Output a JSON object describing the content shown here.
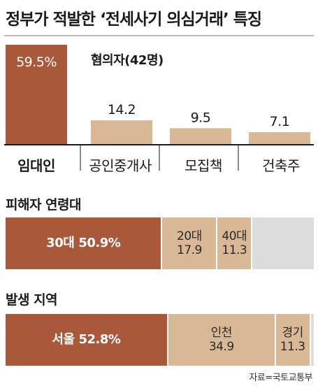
{
  "title": "정부가 적발한 ‘전세사기 의심거래’ 특징",
  "chart_data": [
    {
      "type": "bar",
      "subtitle": "혐의자(42명)",
      "categories": [
        "임대인",
        "공인중개사",
        "모집책",
        "건축주"
      ],
      "values": [
        59.5,
        14.2,
        9.5,
        7.1
      ],
      "value_labels": [
        "59.5%",
        "14.2",
        "9.5",
        "7.1"
      ],
      "ylim": [
        0,
        59.5
      ],
      "colors": {
        "highlight": "#a9593a",
        "normal": "#d9b896"
      }
    },
    {
      "type": "stacked-bar",
      "title": "피해자 연령대",
      "segments": [
        {
          "category": "30대",
          "value": 50.9,
          "label": "50.9%"
        },
        {
          "category": "20대",
          "value": 17.9,
          "label": "17.9"
        },
        {
          "category": "40대",
          "value": 11.3,
          "label": "11.3"
        },
        {
          "category": "",
          "value": 19.9,
          "label": ""
        }
      ],
      "colors": [
        "#a9593a",
        "#d9b896",
        "#d9b896",
        "#dcdcdc"
      ]
    },
    {
      "type": "stacked-bar",
      "title": "발생 지역",
      "segments": [
        {
          "category": "서울",
          "value": 52.8,
          "label": "52.8%"
        },
        {
          "category": "인천",
          "value": 34.9,
          "label": "34.9"
        },
        {
          "category": "경기",
          "value": 11.3,
          "label": "11.3"
        },
        {
          "category": "",
          "value": 1.0,
          "label": ""
        }
      ],
      "colors": [
        "#a9593a",
        "#d9b896",
        "#d9b896",
        "#dcdcdc"
      ]
    }
  ],
  "source": "자료=국토교통부"
}
